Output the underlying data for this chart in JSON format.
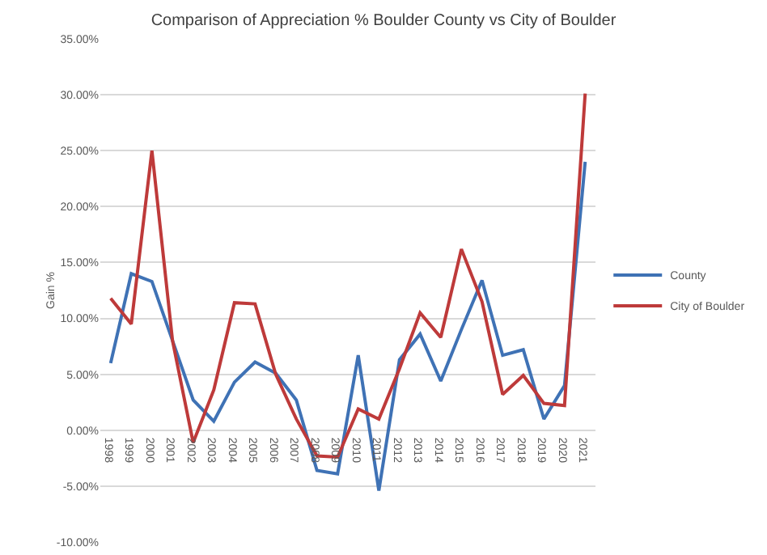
{
  "chart_data": {
    "type": "line",
    "title": "Comparison of Appreciation % Boulder County vs City of Boulder",
    "ylabel": "Gain %",
    "categories": [
      "1998",
      "1999",
      "2000",
      "2001",
      "2002",
      "2003",
      "2004",
      "2005",
      "2006",
      "2007",
      "2008",
      "2009",
      "2010",
      "2011",
      "2012",
      "2013",
      "2014",
      "2015",
      "2016",
      "2017",
      "2018",
      "2019",
      "2020",
      "2021"
    ],
    "series": [
      {
        "name": "County",
        "color": "#3f72b5",
        "values": [
          6.0,
          14.0,
          13.3,
          8.0,
          2.7,
          0.8,
          4.3,
          6.1,
          5.1,
          2.7,
          -3.6,
          -3.9,
          6.7,
          -5.4,
          6.3,
          8.6,
          4.4,
          9.0,
          13.4,
          6.7,
          7.2,
          1.0,
          4.0,
          24.0
        ]
      },
      {
        "name": "City of Boulder",
        "color": "#be3a3a",
        "values": [
          11.8,
          9.5,
          25.0,
          8.0,
          -1.1,
          3.6,
          11.4,
          11.3,
          5.0,
          1.0,
          -2.3,
          -2.4,
          1.9,
          1.0,
          5.5,
          10.5,
          8.3,
          16.2,
          11.5,
          3.2,
          4.9,
          2.4,
          2.2,
          30.1
        ]
      }
    ],
    "ylim": [
      -10,
      35
    ],
    "yticks": [
      {
        "value": -10,
        "label": "-10.00%"
      },
      {
        "value": -5,
        "label": "-5.00%"
      },
      {
        "value": 0,
        "label": "0.00%"
      },
      {
        "value": 5,
        "label": "5.00%"
      },
      {
        "value": 10,
        "label": "10.00%"
      },
      {
        "value": 15,
        "label": "15.00%"
      },
      {
        "value": 20,
        "label": "20.00%"
      },
      {
        "value": 25,
        "label": "25.00%"
      },
      {
        "value": 30,
        "label": "30.00%"
      },
      {
        "value": 35,
        "label": "35.00%"
      }
    ],
    "grid": "y",
    "legend": "right",
    "marker": "none",
    "line_style": "solid"
  }
}
